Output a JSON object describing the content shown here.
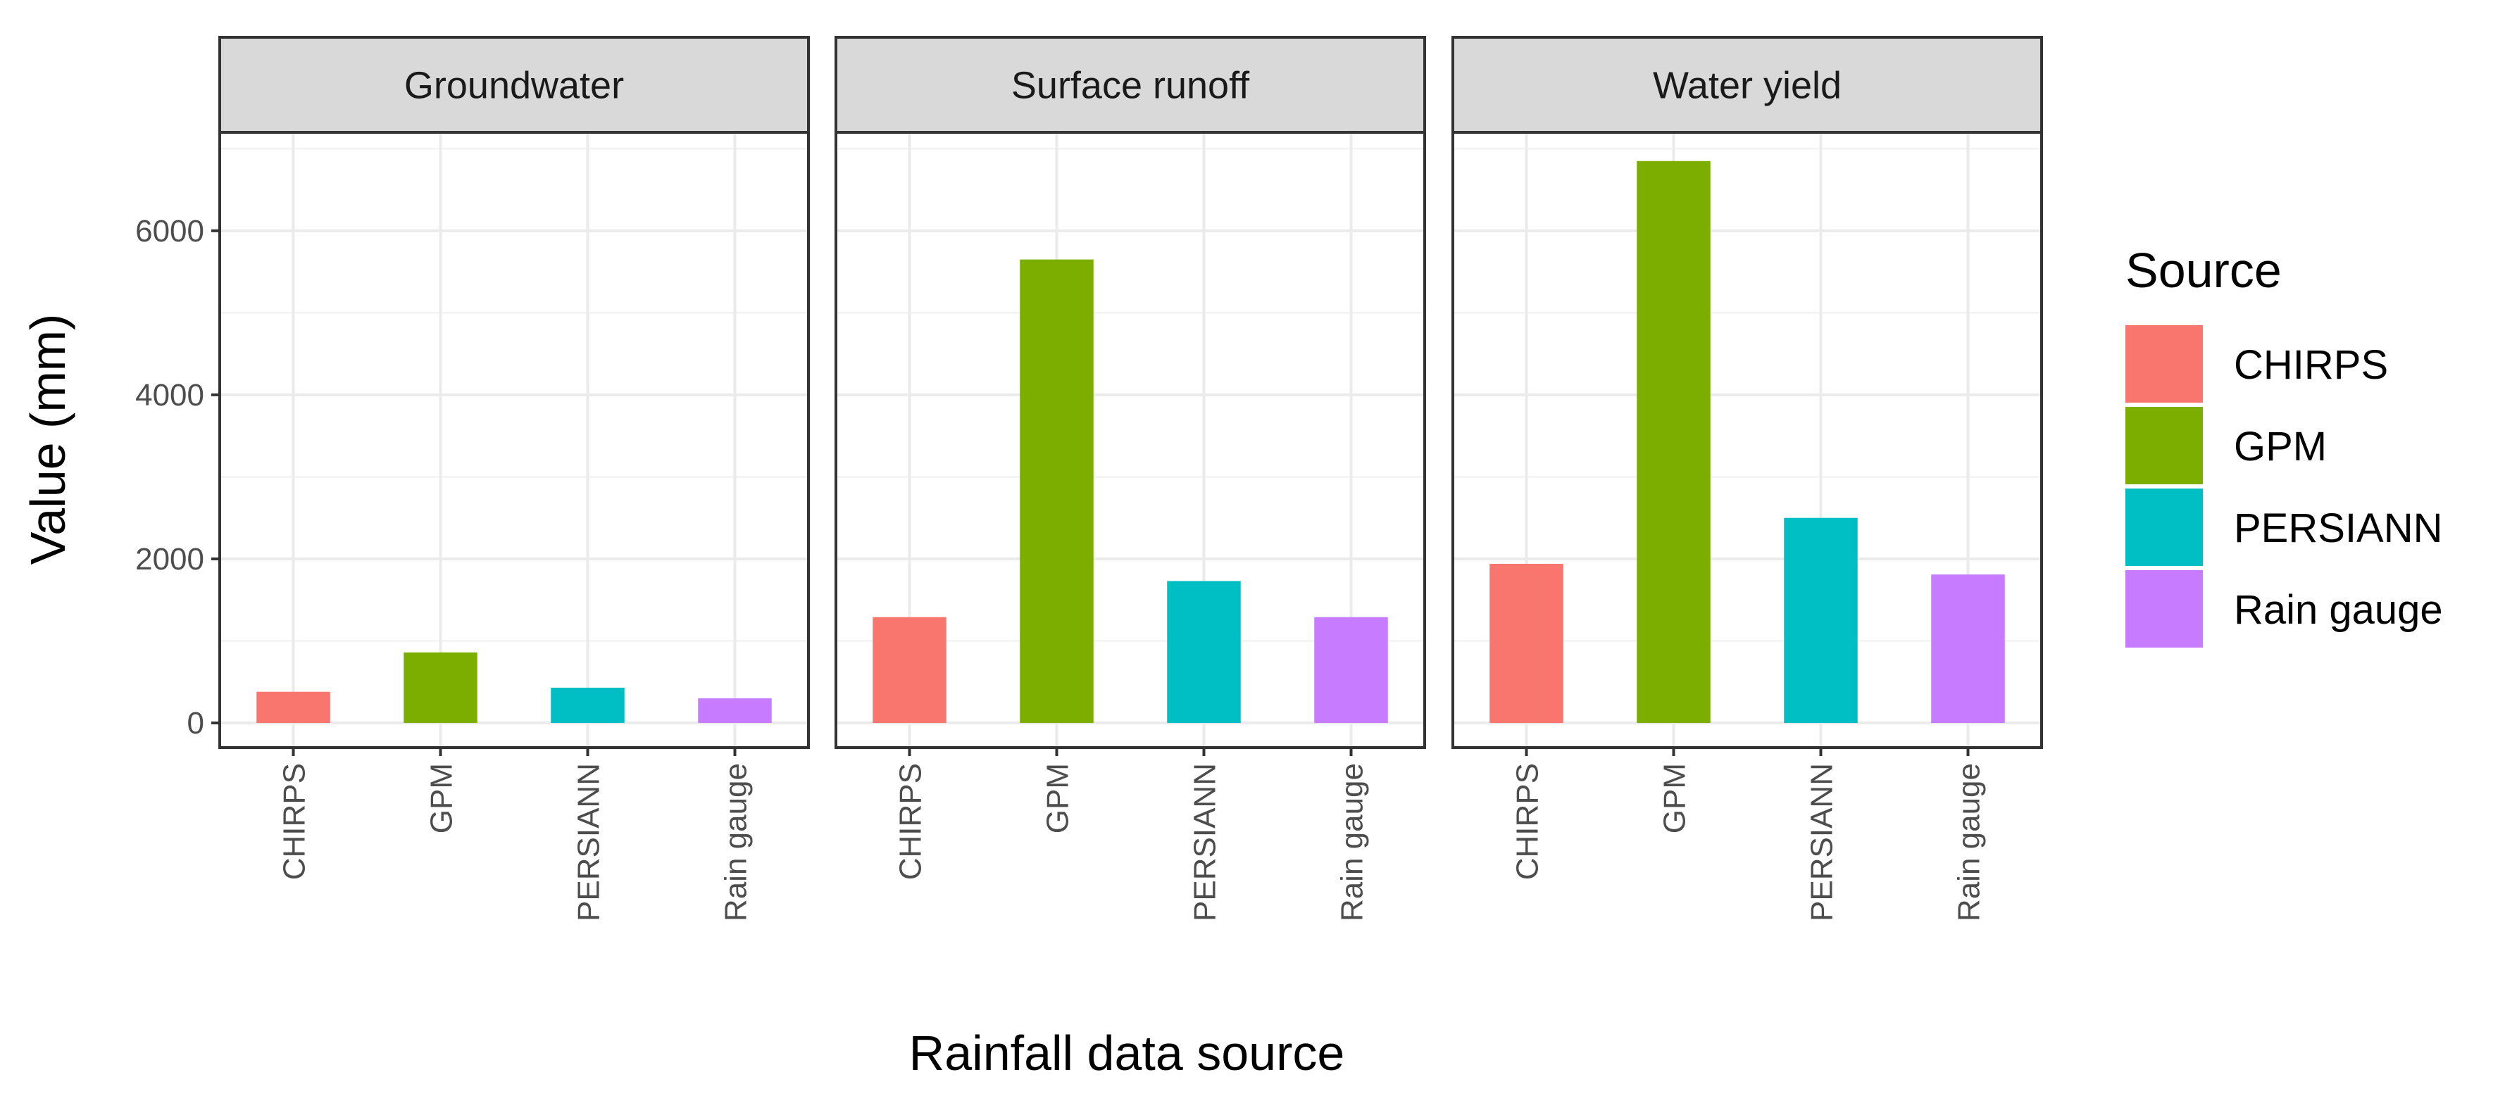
{
  "chart_data": {
    "type": "bar",
    "facet_by": "component",
    "panels": [
      {
        "name": "Groundwater",
        "categories": [
          "CHIRPS",
          "GPM",
          "PERSIANN",
          "Rain gauge"
        ],
        "values": [
          380,
          860,
          430,
          300
        ]
      },
      {
        "name": "Surface runoff",
        "categories": [
          "CHIRPS",
          "GPM",
          "PERSIANN",
          "Rain gauge"
        ],
        "values": [
          1290,
          5650,
          1730,
          1290
        ]
      },
      {
        "name": "Water yield",
        "categories": [
          "CHIRPS",
          "GPM",
          "PERSIANN",
          "Rain gauge"
        ],
        "values": [
          1940,
          6850,
          2500,
          1810
        ]
      }
    ],
    "xlabel": "Rainfall data source",
    "ylabel": "Value (mm)",
    "ylim": [
      -300,
      7200
    ],
    "yticks": [
      0,
      2000,
      4000,
      6000
    ],
    "grid": true,
    "legend": {
      "title": "Source",
      "position": "right",
      "entries": [
        {
          "label": "CHIRPS",
          "color": "#F8766D"
        },
        {
          "label": "GPM",
          "color": "#7CAE00"
        },
        {
          "label": "PERSIANN",
          "color": "#00BFC4"
        },
        {
          "label": "Rain gauge",
          "color": "#C77CFF"
        }
      ]
    }
  }
}
